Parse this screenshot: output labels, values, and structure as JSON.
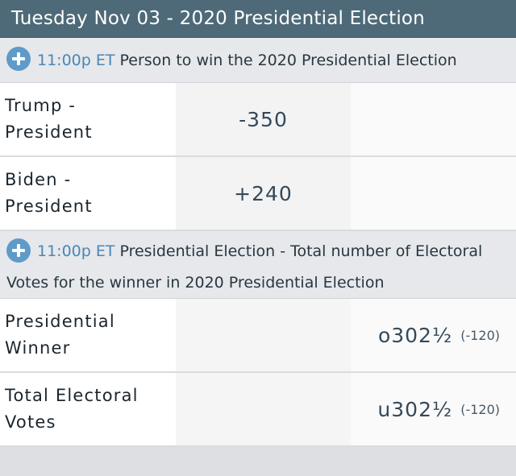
{
  "header": {
    "title": "Tuesday Nov 03 - 2020 Presidential Election"
  },
  "sections": [
    {
      "time": "11:00p ET",
      "title": "Person to win the 2020 Presidential Election",
      "rows": [
        {
          "name_line1": "Trump -",
          "name_line2": "President",
          "moneyline": "-350"
        },
        {
          "name_line1": "Biden -",
          "name_line2": "President",
          "moneyline": "+240"
        }
      ]
    },
    {
      "time": "11:00p ET",
      "title": "Presidential Election - Total number of Electoral Votes for the winner in 2020 Presidential Election",
      "rows": [
        {
          "name_line1": "Presidential",
          "name_line2": "Winner",
          "total": "o302½",
          "odds": "(-120)"
        },
        {
          "name_line1": "Total Electoral",
          "name_line2": "Votes",
          "total": "u302½",
          "odds": "(-120)"
        }
      ]
    }
  ],
  "icons": {
    "expand": "plus-circle-icon"
  },
  "colors": {
    "header_bg": "#4e6a78",
    "accent_blue": "#5f9bc9"
  }
}
